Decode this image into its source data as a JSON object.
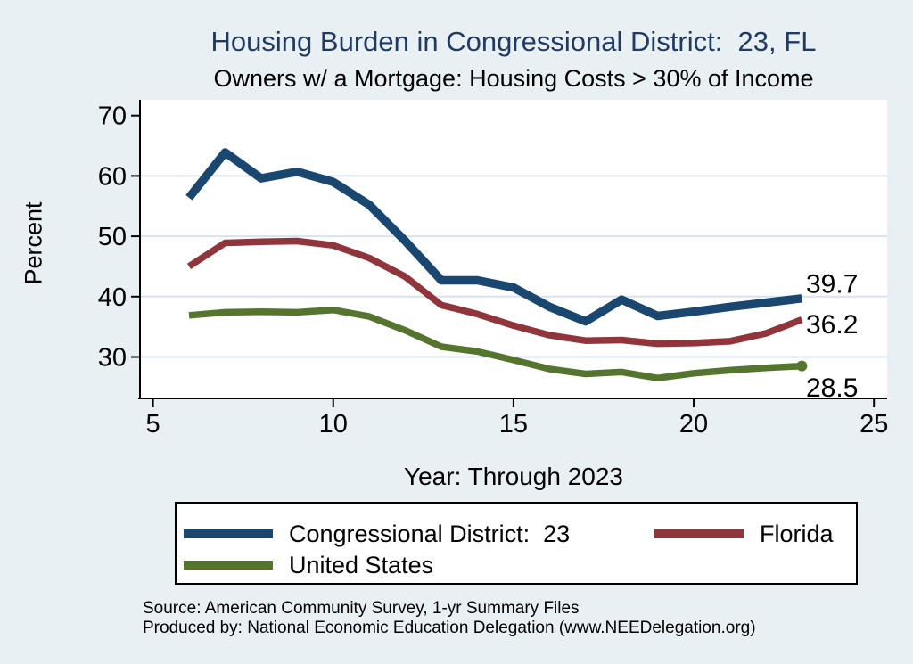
{
  "page": {
    "background_color": "#e8f0f4",
    "plot_background_color": "#ffffff",
    "grid_color": "#d7e3ee",
    "axis_color": "#000000",
    "title_color": "#203a61"
  },
  "header": {
    "title": "Housing Burden in Congressional District:  23, FL",
    "subtitle": "Owners w/ a Mortgage: Housing Costs > 30% of Income"
  },
  "chart_data": {
    "type": "line",
    "title": "Housing Burden in Congressional District:  23, FL",
    "subtitle": "Owners w/ a Mortgage: Housing Costs > 30% of Income",
    "xlabel": "Year: Through 2023",
    "ylabel": "Percent",
    "xlim": [
      5,
      25
    ],
    "ylim": [
      23,
      73
    ],
    "x_ticks": [
      5,
      10,
      15,
      20,
      25
    ],
    "y_ticks": [
      30,
      40,
      50,
      60,
      70
    ],
    "grid_y_values": [
      30,
      40,
      50,
      60
    ],
    "grid_on": true,
    "legend_position": "bottom",
    "x": [
      6,
      7,
      8,
      9,
      10,
      11,
      12,
      13,
      14,
      15,
      16,
      17,
      18,
      19,
      20,
      21,
      22,
      23
    ],
    "series": [
      {
        "name": "Congressional District:  23",
        "color": "#1a476f",
        "line_width": 9.5,
        "end_label": "39.7",
        "end_marker": false,
        "values": [
          56.4,
          63.9,
          59.6,
          60.7,
          59.0,
          55.2,
          49.2,
          42.7,
          42.7,
          41.5,
          38.3,
          35.9,
          39.5,
          36.8,
          37.5,
          38.3,
          39.0,
          39.7
        ]
      },
      {
        "name": "Florida",
        "color": "#90353b",
        "line_width": 7.5,
        "end_label": "36.2",
        "end_marker": false,
        "values": [
          45.0,
          48.9,
          49.1,
          49.2,
          48.5,
          46.4,
          43.3,
          38.6,
          37.1,
          35.2,
          33.6,
          32.7,
          32.8,
          32.2,
          32.3,
          32.6,
          33.9,
          36.2
        ]
      },
      {
        "name": "United States",
        "color": "#55752f",
        "line_width": 7.5,
        "end_label": "28.5",
        "end_marker": true,
        "values": [
          36.9,
          37.4,
          37.5,
          37.4,
          37.8,
          36.7,
          34.4,
          31.7,
          30.9,
          29.5,
          28.0,
          27.2,
          27.5,
          26.5,
          27.3,
          27.8,
          28.2,
          28.5
        ]
      }
    ]
  },
  "legend": {
    "items": [
      {
        "label": "Congressional District:  23",
        "color": "#1a476f"
      },
      {
        "label": "Florida",
        "color": "#90353b"
      },
      {
        "label": "United States",
        "color": "#55752f"
      }
    ]
  },
  "footer": {
    "source_line_1": "Source: American Community Survey, 1-yr Summary Files",
    "source_line_2": "Produced by: National Economic Education Delegation (www.NEEDelegation.org)"
  }
}
